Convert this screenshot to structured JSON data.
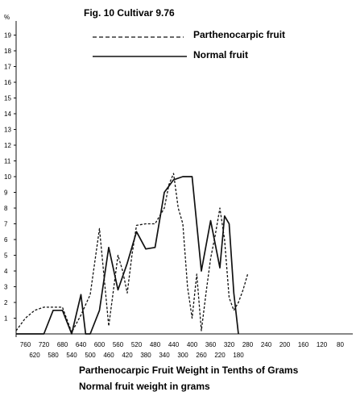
{
  "chart_data": {
    "type": "line",
    "title": "Fig. 10   Cultivar 9.76",
    "ylabel_unit": "%",
    "xlabel_primary": "Parthenocarpic Fruit Weight in Tenths of Grams",
    "xlabel_secondary": "Normal fruit weight in grams",
    "ylim": [
      0,
      20
    ],
    "y_ticks": [
      1,
      2,
      3,
      4,
      5,
      6,
      7,
      8,
      9,
      10,
      11,
      12,
      13,
      14,
      15,
      16,
      17,
      18,
      19
    ],
    "x_ticks_primary": [
      760,
      720,
      680,
      640,
      600,
      560,
      520,
      480,
      440,
      400,
      360,
      320,
      280,
      240,
      200,
      160,
      120,
      80
    ],
    "x_ticks_secondary": [
      620,
      580,
      540,
      500,
      460,
      420,
      380,
      340,
      300,
      260,
      220,
      180
    ],
    "x_range_primary": [
      780,
      60
    ],
    "series": [
      {
        "name": "Parthenocarpic fruit",
        "style": "dashed",
        "x_axis": "primary",
        "x": [
          780,
          760,
          740,
          720,
          700,
          680,
          660,
          640,
          620,
          600,
          580,
          560,
          550,
          540,
          530,
          520,
          500,
          480,
          460,
          450,
          440,
          430,
          420,
          410,
          400,
          390,
          380,
          370,
          360,
          350,
          340,
          330,
          320,
          310,
          300,
          290,
          280
        ],
        "y": [
          0.2,
          1.0,
          1.5,
          1.7,
          1.7,
          1.7,
          0.1,
          1.2,
          2.5,
          6.7,
          0.5,
          5.0,
          4.0,
          2.6,
          5.0,
          6.9,
          7.0,
          7.0,
          8.0,
          9.5,
          10.2,
          8.0,
          7.0,
          3.0,
          1.0,
          3.8,
          0.2,
          2.6,
          4.8,
          6.3,
          8.0,
          6.0,
          2.3,
          1.5,
          2.0,
          2.8,
          3.8
        ]
      },
      {
        "name": "Normal fruit",
        "style": "solid",
        "x_axis": "secondary",
        "x": [
          660,
          640,
          620,
          600,
          580,
          560,
          540,
          520,
          510,
          500,
          480,
          460,
          440,
          420,
          400,
          380,
          360,
          340,
          320,
          300,
          280,
          260,
          240,
          220,
          210,
          200,
          190,
          180
        ],
        "y": [
          0,
          0,
          0,
          0,
          1.5,
          1.5,
          0,
          2.5,
          0,
          0,
          1.5,
          5.5,
          2.8,
          4.5,
          6.5,
          5.4,
          5.5,
          9.0,
          9.8,
          10.0,
          10.0,
          4.0,
          7.2,
          4.2,
          7.5,
          7.0,
          2.6,
          0
        ]
      }
    ]
  }
}
